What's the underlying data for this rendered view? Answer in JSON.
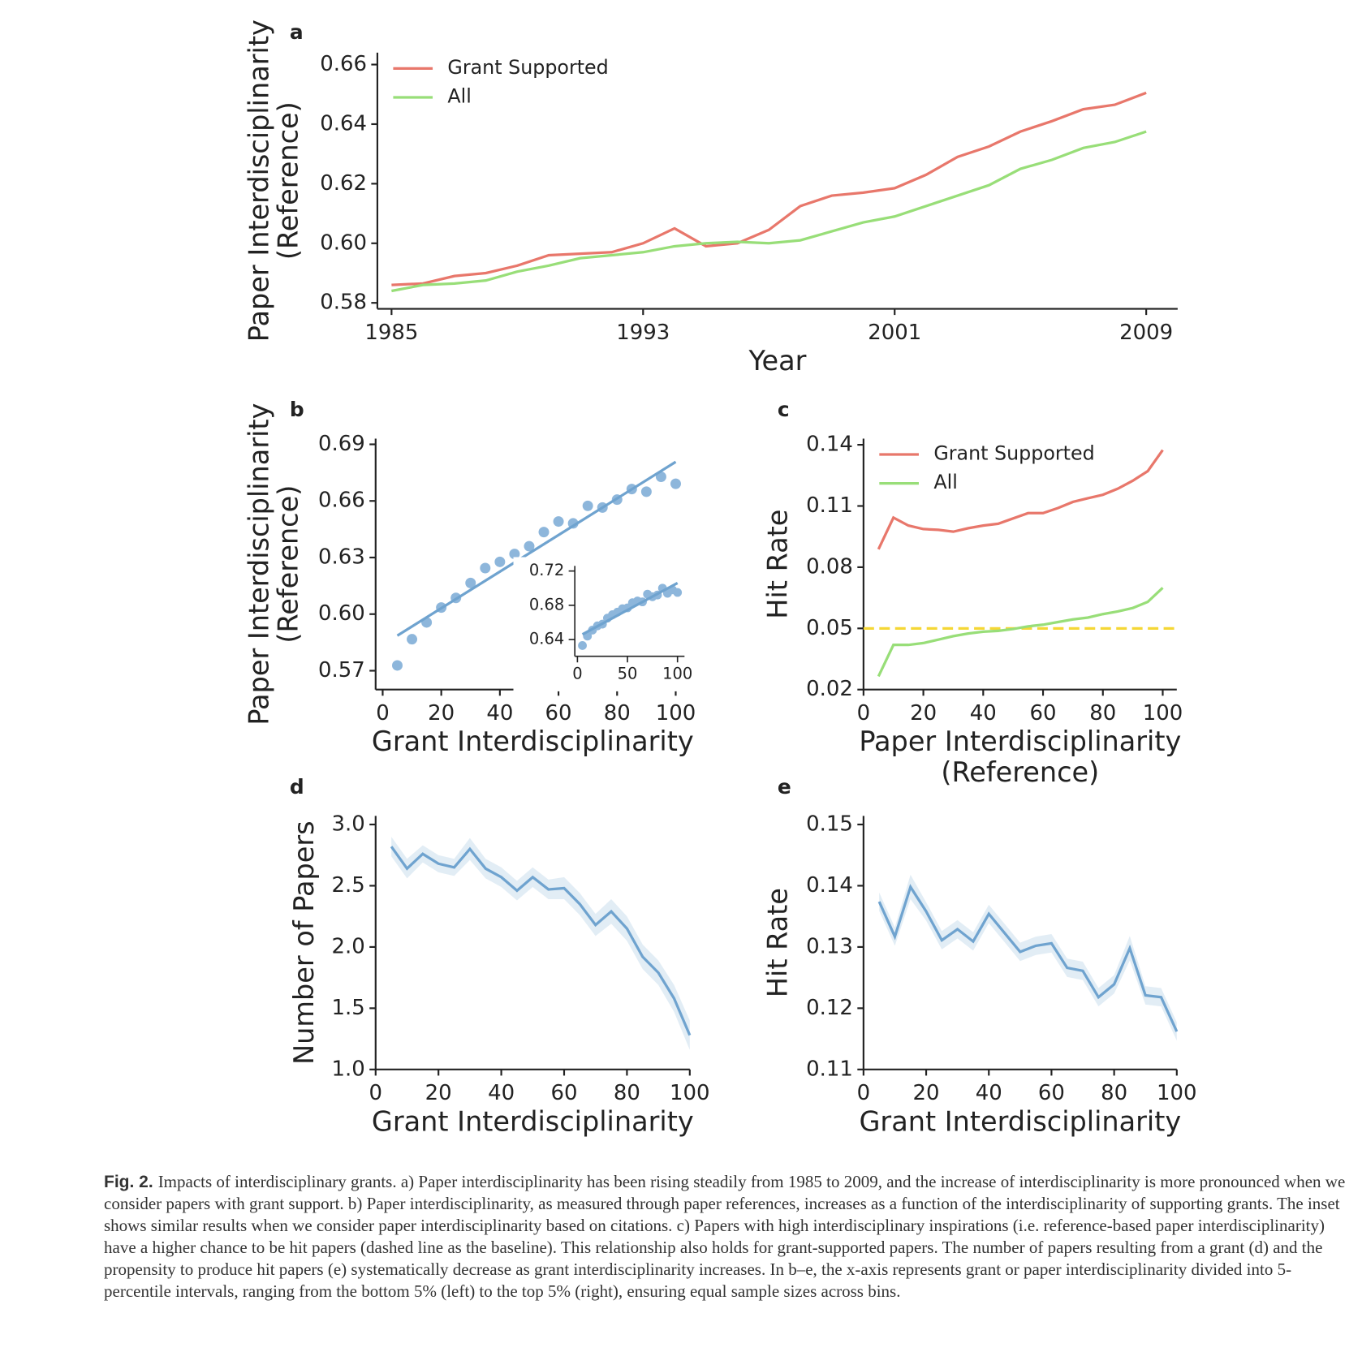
{
  "chart_data": [
    {
      "type": "line",
      "panel": "a",
      "x": [
        1985,
        1986,
        1987,
        1988,
        1989,
        1990,
        1991,
        1992,
        1993,
        1994,
        1995,
        1996,
        1997,
        1998,
        1999,
        2000,
        2001,
        2002,
        2003,
        2004,
        2005,
        2006,
        2007,
        2008,
        2009
      ],
      "series": [
        {
          "name": "Grant Supported",
          "color": "#e8776b",
          "values": [
            0.586,
            0.5865,
            0.589,
            0.59,
            0.5925,
            0.596,
            0.5965,
            0.597,
            0.6,
            0.605,
            0.599,
            0.6,
            0.6045,
            0.6125,
            0.616,
            0.617,
            0.6185,
            0.623,
            0.629,
            0.6325,
            0.6375,
            0.641,
            0.645,
            0.6465,
            0.6505
          ]
        },
        {
          "name": "All",
          "color": "#98de78",
          "values": [
            0.584,
            0.586,
            0.5865,
            0.5875,
            0.5905,
            0.5925,
            0.595,
            0.596,
            0.597,
            0.599,
            0.6,
            0.6005,
            0.6,
            0.601,
            0.604,
            0.607,
            0.609,
            0.6125,
            0.616,
            0.6195,
            0.625,
            0.628,
            0.632,
            0.634,
            0.6375
          ]
        }
      ],
      "xlim": [
        1984.55,
        2010
      ],
      "xticks": [
        1985,
        1993,
        2001,
        2009
      ],
      "ylim": [
        0.578,
        0.664
      ],
      "yticks": [
        0.66,
        0.64,
        0.62,
        {
          "value": 0.6,
          "label": "0.60"
        },
        0.58
      ],
      "xlabel": [
        "Year"
      ],
      "ylabel": [
        "Paper Interdisciplinarity",
        "(Reference)"
      ],
      "legend": "upper left"
    },
    {
      "type": "scatter",
      "panel": "b",
      "x": [
        5,
        10,
        15,
        20,
        25,
        30,
        35,
        40,
        45,
        50,
        55,
        60,
        65,
        70,
        75,
        80,
        85,
        90,
        95,
        100
      ],
      "series": [
        {
          "color": "#8db6db",
          "values": [
            0.5728,
            0.5867,
            0.5956,
            0.6035,
            0.6086,
            0.6165,
            0.6244,
            0.6277,
            0.6319,
            0.636,
            0.6435,
            0.6491,
            0.6481,
            0.6574,
            0.6565,
            0.6607,
            0.6663,
            0.6649,
            0.6728,
            0.6691
          ]
        }
      ],
      "fit": {
        "color": "#6fa3cf",
        "x": [
          5,
          100
        ],
        "values": [
          0.5886,
          0.6807
        ]
      },
      "xlim": [
        -2.4,
        104.8
      ],
      "xticks": [
        0,
        20,
        40,
        60,
        80,
        100
      ],
      "ylim": [
        0.56,
        0.693
      ],
      "yticks": [
        0.69,
        0.66,
        0.63,
        {
          "value": 0.6,
          "label": "0.60"
        },
        0.57
      ],
      "xlabel": [
        "Grant Interdisciplinarity"
      ],
      "ylabel": [
        "Paper Interdisciplinarity",
        "(Reference)"
      ],
      "inset": {
        "type": "scatter",
        "x": [
          5,
          10,
          15,
          20,
          25,
          30,
          35,
          40,
          45,
          50,
          55,
          60,
          65,
          70,
          75,
          80,
          85,
          90,
          95,
          100
        ],
        "series": [
          {
            "color": "#8db6db",
            "values": [
              0.633,
              0.644,
              0.651,
              0.656,
              0.658,
              0.665,
              0.669,
              0.672,
              0.676,
              0.677,
              0.683,
              0.685,
              0.684,
              0.693,
              0.69,
              0.692,
              0.7,
              0.694,
              0.698,
              0.695
            ]
          }
        ],
        "fit": {
          "color": "#6fa3cf",
          "x": [
            5,
            100
          ],
          "values": [
            0.646,
            0.706
          ]
        },
        "xlim": [
          -2.6,
          107
        ],
        "xticks": [
          0,
          50,
          100
        ],
        "ylim": [
          0.6205,
          0.726
        ],
        "yticks": [
          0.72,
          0.68,
          0.64
        ]
      }
    },
    {
      "type": "line",
      "panel": "c",
      "x": [
        5,
        10,
        15,
        20,
        25,
        30,
        35,
        40,
        45,
        50,
        55,
        60,
        65,
        70,
        75,
        80,
        85,
        90,
        95,
        100
      ],
      "series": [
        {
          "name": "Grant Supported",
          "color": "#e8776b",
          "values": [
            0.0888,
            0.1043,
            0.1004,
            0.0987,
            0.0983,
            0.0974,
            0.0991,
            0.1004,
            0.1013,
            0.1039,
            0.1065,
            0.1065,
            0.109,
            0.112,
            0.1138,
            0.1155,
            0.1185,
            0.1224,
            0.1271,
            0.1374
          ]
        },
        {
          "name": "All",
          "color": "#98de78",
          "values": [
            0.0265,
            0.0419,
            0.0419,
            0.0428,
            0.0445,
            0.0462,
            0.0475,
            0.0484,
            0.0488,
            0.0497,
            0.051,
            0.0518,
            0.0531,
            0.0544,
            0.0553,
            0.057,
            0.0583,
            0.06,
            0.063,
            0.0699
          ]
        }
      ],
      "baseline": {
        "value": 0.05,
        "color": "#f5d735"
      },
      "xlim": [
        0,
        104.7
      ],
      "xticks": [
        0,
        20,
        40,
        60,
        80,
        100
      ],
      "ylim": [
        0.02,
        0.143
      ],
      "yticks": [
        0.14,
        0.11,
        0.08,
        0.05,
        0.02
      ],
      "xlabel": [
        "Paper Interdisciplinarity",
        "(Reference)"
      ],
      "ylabel": [
        "Hit Rate"
      ],
      "legend": "upper left"
    },
    {
      "type": "line",
      "panel": "d",
      "x": [
        5,
        10,
        15,
        20,
        25,
        30,
        35,
        40,
        45,
        50,
        55,
        60,
        65,
        70,
        75,
        80,
        85,
        90,
        95,
        100
      ],
      "series": [
        {
          "color": "#6fa3cf",
          "values": [
            2.82,
            2.64,
            2.76,
            2.68,
            2.65,
            2.8,
            2.64,
            2.57,
            2.46,
            2.57,
            2.47,
            2.48,
            2.35,
            2.18,
            2.29,
            2.15,
            1.92,
            1.79,
            1.58,
            1.28
          ],
          "errors": [
            0.08,
            0.08,
            0.07,
            0.07,
            0.07,
            0.09,
            0.08,
            0.08,
            0.08,
            0.08,
            0.08,
            0.09,
            0.09,
            0.09,
            0.1,
            0.1,
            0.1,
            0.1,
            0.11,
            0.12
          ]
        }
      ],
      "xlim": [
        0,
        100
      ],
      "xticks": [
        0,
        20,
        40,
        60,
        80,
        100
      ],
      "ylim": [
        1.0,
        3.07
      ],
      "yticks": [
        {
          "value": 3,
          "label": "3.0"
        },
        2.5,
        {
          "value": 2,
          "label": "2.0"
        },
        1.5,
        {
          "value": 1,
          "label": "1.0"
        }
      ],
      "xlabel": [
        "Grant Interdisciplinarity"
      ],
      "ylabel": [
        "Number of Papers"
      ]
    },
    {
      "type": "line",
      "panel": "e",
      "x": [
        5,
        10,
        15,
        20,
        25,
        30,
        35,
        40,
        45,
        50,
        55,
        60,
        65,
        70,
        75,
        80,
        85,
        90,
        95,
        100
      ],
      "series": [
        {
          "color": "#6fa3cf",
          "values": [
            0.1374,
            0.1317,
            0.1398,
            0.1358,
            0.1311,
            0.1329,
            0.1309,
            0.1354,
            0.1323,
            0.1292,
            0.1302,
            0.1306,
            0.1266,
            0.1261,
            0.1218,
            0.1239,
            0.1298,
            0.1221,
            0.1218,
            0.1162
          ],
          "errors": [
            0.0015,
            0.0015,
            0.002,
            0.0015,
            0.0015,
            0.0015,
            0.0015,
            0.0015,
            0.0015,
            0.0015,
            0.0015,
            0.0015,
            0.0015,
            0.0015,
            0.0015,
            0.0015,
            0.002,
            0.0015,
            0.0015,
            0.0015
          ]
        }
      ],
      "xlim": [
        0,
        100
      ],
      "xticks": [
        0,
        20,
        40,
        60,
        80,
        100
      ],
      "ylim": [
        0.11,
        0.1514
      ],
      "yticks": [
        0.15,
        0.14,
        0.13,
        0.12,
        0.11
      ],
      "xlabel": [
        "Grant Interdisciplinarity"
      ],
      "ylabel": [
        "Hit Rate"
      ]
    }
  ],
  "caption": {
    "label": "Fig. 2.",
    "text": "Impacts of interdisciplinary grants. a) Paper interdisciplinarity has been rising steadily from 1985 to 2009, and the increase of interdisciplinarity is more pronounced when we consider papers with grant support. b) Paper interdisciplinarity, as measured through paper references, increases as a function of the interdisciplinarity of supporting grants. The inset shows similar results when we consider paper interdisciplinarity based on citations. c) Papers with high interdisciplinary inspirations (i.e. reference-based paper interdisciplinarity) have a higher chance to be hit papers (dashed line as the baseline). This relationship also holds for grant-supported papers. The number of papers resulting from a grant (d) and the propensity to produce hit papers (e) systematically decrease as grant interdisciplinarity increases. In b–e, the x-axis represents grant or paper interdisciplinarity divided into 5-percentile intervals, ranging from the bottom 5% (left) to the top 5% (right), ensuring equal sample sizes across bins."
  }
}
